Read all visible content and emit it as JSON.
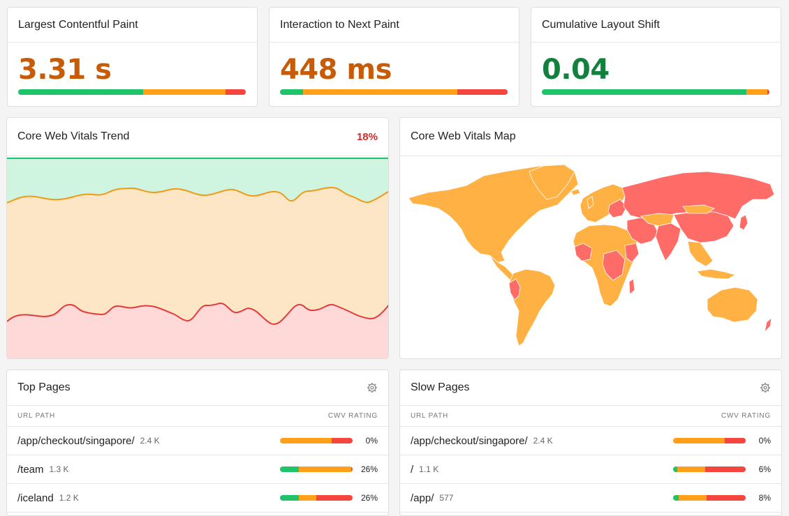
{
  "metrics": [
    {
      "title": "Largest Contentful Paint",
      "value": "3.31 s",
      "color": "#c75b08",
      "good": 0.55,
      "ni": 0.36,
      "poor": 0.09
    },
    {
      "title": "Interaction to Next Paint",
      "value": "448 ms",
      "color": "#c75b08",
      "good": 0.1,
      "ni": 0.68,
      "poor": 0.22
    },
    {
      "title": "Cumulative Layout Shift",
      "value": "0.04",
      "color": "#13803e",
      "good": 0.9,
      "ni": 0.09,
      "poor": 0.01
    }
  ],
  "trend": {
    "title": "Core Web Vitals Trend",
    "percent": "18%"
  },
  "map": {
    "title": "Core Web Vitals Map"
  },
  "top_pages": {
    "title": "Top Pages",
    "col_path": "URL PATH",
    "col_rating": "CWV RATING",
    "rows": [
      {
        "path": "/app/checkout/singapore/",
        "count": "2.4 K",
        "pct": "0%",
        "good": 0,
        "ni": 0.71,
        "poor": 0.29
      },
      {
        "path": "/team",
        "count": "1.3 K",
        "pct": "26%",
        "good": 0.26,
        "ni": 0.72,
        "poor": 0.02
      },
      {
        "path": "/iceland",
        "count": "1.2 K",
        "pct": "26%",
        "good": 0.26,
        "ni": 0.24,
        "poor": 0.5
      }
    ]
  },
  "slow_pages": {
    "title": "Slow Pages",
    "col_path": "URL PATH",
    "col_rating": "CWV RATING",
    "rows": [
      {
        "path": "/app/checkout/singapore/",
        "count": "2.4 K",
        "pct": "0%",
        "good": 0,
        "ni": 0.71,
        "poor": 0.29
      },
      {
        "path": "/",
        "count": "1.1 K",
        "pct": "6%",
        "good": 0.06,
        "ni": 0.38,
        "poor": 0.56
      },
      {
        "path": "/app/",
        "count": "577",
        "pct": "8%",
        "good": 0.08,
        "ni": 0.38,
        "poor": 0.54
      }
    ]
  },
  "colors": {
    "good": "#1fc36a",
    "needs_improvement": "#ff9f1a",
    "poor": "#f4463f"
  },
  "icons": {
    "settings": "gear-icon"
  }
}
